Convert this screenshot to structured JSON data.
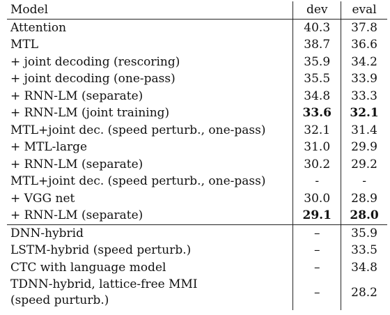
{
  "table": {
    "headers": {
      "model": "Model",
      "dev": "dev",
      "eval": "eval"
    },
    "rows_group1": [
      {
        "model": "Attention",
        "dev": "40.3",
        "eval": "37.8"
      },
      {
        "model": "MTL",
        "dev": "38.7",
        "eval": "36.6"
      },
      {
        "model": "+ joint decoding (rescoring)",
        "dev": "35.9",
        "eval": "34.2"
      },
      {
        "model": "+ joint decoding (one-pass)",
        "dev": "35.5",
        "eval": "33.9"
      },
      {
        "model": "+ RNN-LM (separate)",
        "dev": "34.8",
        "eval": "33.3"
      },
      {
        "model": "+ RNN-LM (joint training)",
        "dev": "33.6",
        "eval": "32.1",
        "bold": true
      },
      {
        "model": "MTL+joint dec. (speed perturb., one-pass)",
        "dev": "32.1",
        "eval": "31.4"
      },
      {
        "model": "+ MTL-large",
        "dev": "31.0",
        "eval": "29.9"
      },
      {
        "model": "+ RNN-LM (separate)",
        "dev": "30.2",
        "eval": "29.2"
      },
      {
        "model": "MTL+joint dec. (speed perturb., one-pass)",
        "dev": "-",
        "eval": "-"
      },
      {
        "model": "+ VGG net",
        "dev": "30.0",
        "eval": "28.9"
      },
      {
        "model": "+ RNN-LM (separate)",
        "dev": "29.1",
        "eval": "28.0",
        "bold": true
      }
    ],
    "rows_group2": [
      {
        "model": "DNN-hybrid",
        "dev": "–",
        "eval": "35.9"
      },
      {
        "model": "LSTM-hybrid (speed perturb.)",
        "dev": "–",
        "eval": "33.5"
      },
      {
        "model": "CTC with language model",
        "dev": "–",
        "eval": "34.8"
      },
      {
        "model_line1": "TDNN-hybrid, lattice-free MMI",
        "model_line2": "(speed purturb.)",
        "dev": "–",
        "eval": "28.2"
      }
    ]
  }
}
